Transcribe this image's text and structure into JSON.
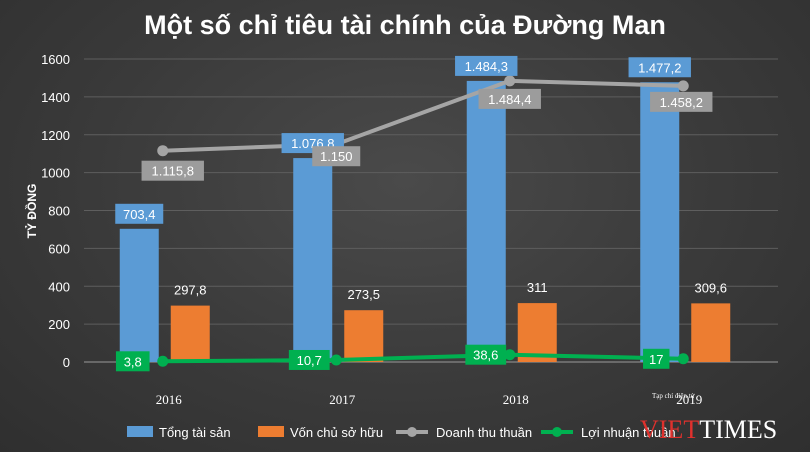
{
  "chart_data": {
    "type": "bar",
    "title": "Một số chỉ tiêu tài chính của Đường Man",
    "ylabel": "TỶ ĐỒNG",
    "ylim": [
      0,
      1600
    ],
    "yticks": [
      0,
      200,
      400,
      600,
      800,
      1000,
      1200,
      1400,
      1600
    ],
    "categories": [
      "2016",
      "2017",
      "2018",
      "2019"
    ],
    "grid": true,
    "legend_position": "bottom",
    "series": [
      {
        "name": "Tổng tài sản",
        "kind": "bar",
        "color": "#5b9bd5",
        "values": [
          703.4,
          1076.8,
          1484.3,
          1477.2
        ],
        "labels": [
          "703,4",
          "1.076,8",
          "1.484,3",
          "1.477,2"
        ]
      },
      {
        "name": "Vốn chủ sở hữu",
        "kind": "bar",
        "color": "#ed7d31",
        "values": [
          297.8,
          273.5,
          311,
          309.6
        ],
        "labels": [
          "297,8",
          "273,5",
          "311",
          "309,6"
        ]
      },
      {
        "name": "Doanh thu thuần",
        "kind": "line",
        "color": "#a5a5a5",
        "values": [
          1115.8,
          1150,
          1484.4,
          1458.2
        ],
        "labels": [
          "1.115,8",
          "1.150",
          "1.484,4",
          "1.458,2"
        ]
      },
      {
        "name": "Lợi nhuận thuần",
        "kind": "line",
        "color": "#00b050",
        "values": [
          3.8,
          10.7,
          38.6,
          17
        ],
        "labels": [
          "3,8",
          "10,7",
          "38,6",
          "17"
        ]
      }
    ]
  },
  "watermark": {
    "caption": "Tạp chí điện tử",
    "brand_left": "VIET",
    "brand_right": "TIMES",
    "brand_color_left": "#e0312d",
    "brand_color_right": "#ffffff"
  }
}
